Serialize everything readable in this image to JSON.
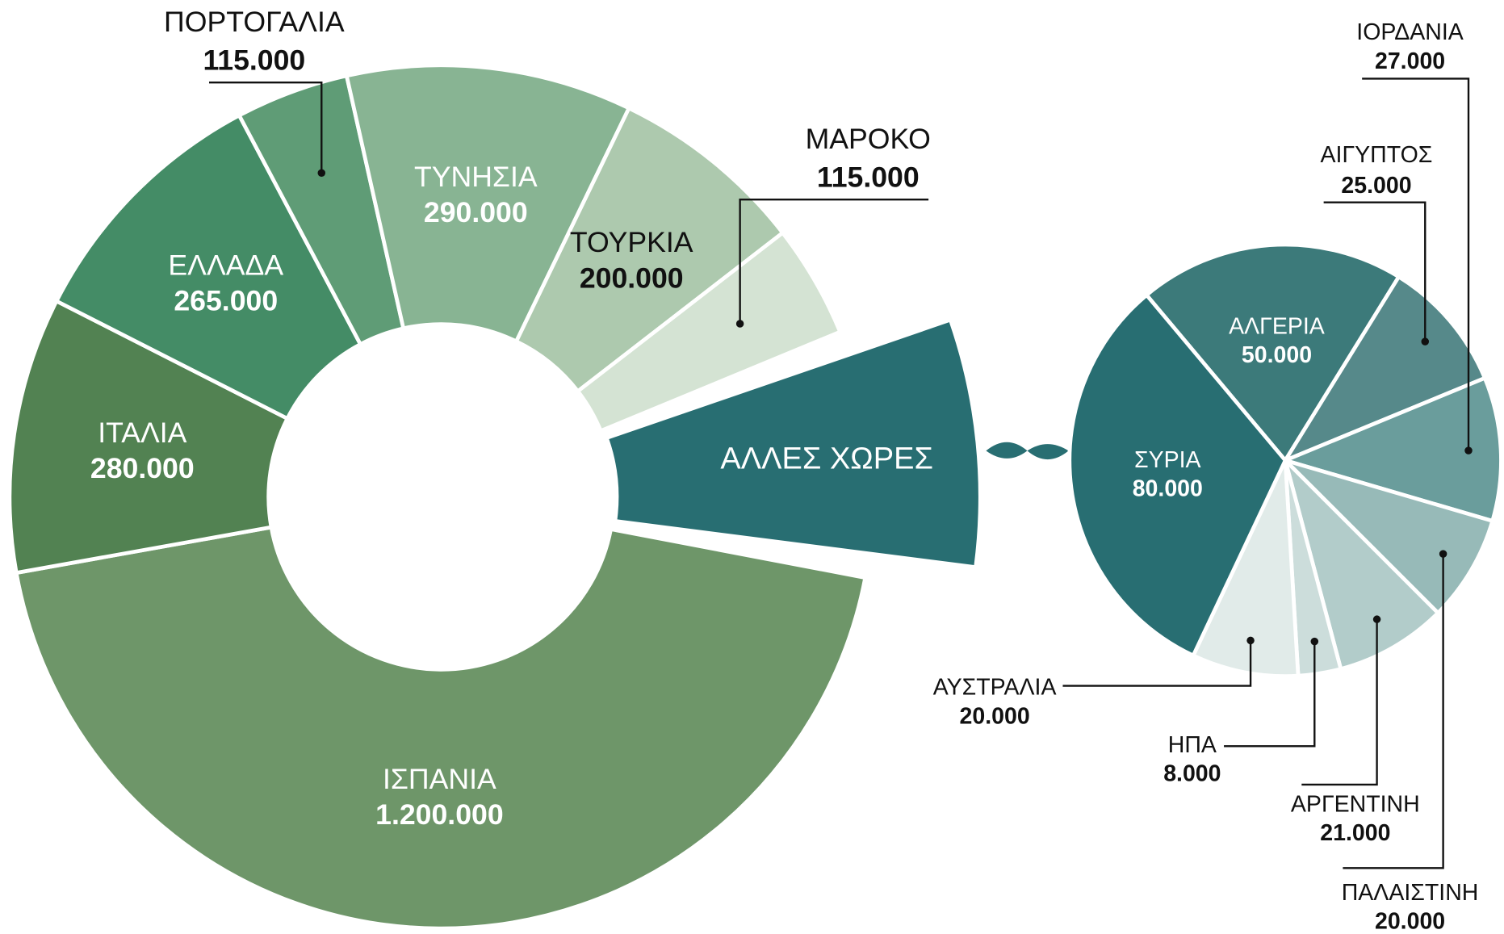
{
  "chart_data": [
    {
      "type": "donut",
      "categories": [
        "ΙΣΠΑΝΙΑ",
        "ΙΤΑΛΙΑ",
        "ΕΛΛΑΔΑ",
        "ΠΟΡΤΟΓΑΛΙΑ",
        "ΤΥΝΗΣΙΑ",
        "ΤΟΥΡΚΙΑ",
        "ΜΑΡΟΚΟ",
        "ΑΛΛΕΣ ΧΩΡΕΣ"
      ],
      "values": [
        1200000,
        280000,
        265000,
        115000,
        290000,
        200000,
        115000,
        251000
      ],
      "value_labels": [
        "1.200.000",
        "280.000",
        "265.000",
        "115.000",
        "290.000",
        "200.000",
        "115.000",
        null
      ],
      "colors": [
        "#6e9669",
        "#528252",
        "#448c66",
        "#5f9c76",
        "#88b493",
        "#adc9ae",
        "#d4e3d3",
        "#286e72"
      ]
    },
    {
      "type": "pie",
      "categories": [
        "ΑΛΓΕΡΙΑ",
        "ΑΙΓΥΠΤΟΣ",
        "ΙΟΡΔΑΝΙΑ",
        "ΠΑΛΑΙΣΤΙΝΗ",
        "ΑΡΓΕΝΤΙΝΗ",
        "ΗΠΑ",
        "ΑΥΣΤΡΑΛΙΑ",
        "ΣΥΡΙΑ"
      ],
      "values": [
        50000,
        25000,
        27000,
        20000,
        21000,
        8000,
        20000,
        80000
      ],
      "value_labels": [
        "50.000",
        "25.000",
        "27.000",
        "20.000",
        "21.000",
        "8.000",
        "20.000",
        "80.000"
      ],
      "colors": [
        "#3c7a7a",
        "#56898a",
        "#6a9d9c",
        "#97bab8",
        "#b2ccca",
        "#ccdddb",
        "#e1ebe9",
        "#286e72"
      ]
    }
  ]
}
